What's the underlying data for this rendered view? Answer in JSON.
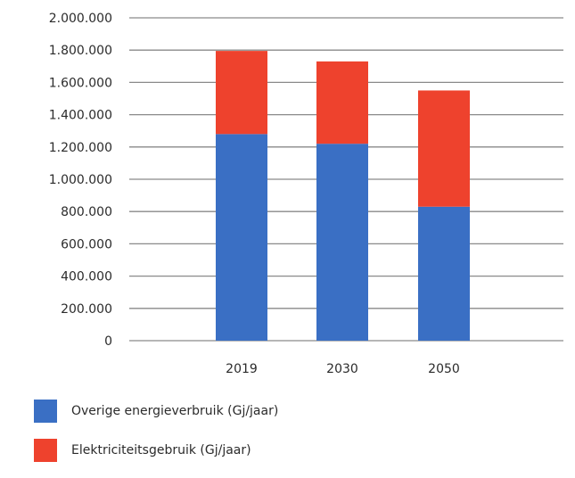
{
  "chart_data": {
    "type": "bar",
    "stacked": true,
    "categories": [
      "2019",
      "2030",
      "2050"
    ],
    "series": [
      {
        "name": "Overige energieverbruik (Gj/jaar)",
        "color": "#3a6fc4",
        "values": [
          1280000,
          1220000,
          830000
        ]
      },
      {
        "name": "Elektriciteitsgebruik (Gj/jaar)",
        "color": "#ee422d",
        "values": [
          515000,
          510000,
          720000
        ]
      }
    ],
    "ylim": [
      0,
      2000000
    ],
    "yticks": [
      "0",
      "200.000",
      "400.000",
      "600.000",
      "800.000",
      "1.000.000",
      "1.200.000",
      "1.400.000",
      "1.600.000",
      "1.800.000",
      "2.000.000"
    ],
    "grid": true,
    "legend_position": "bottom-left"
  }
}
